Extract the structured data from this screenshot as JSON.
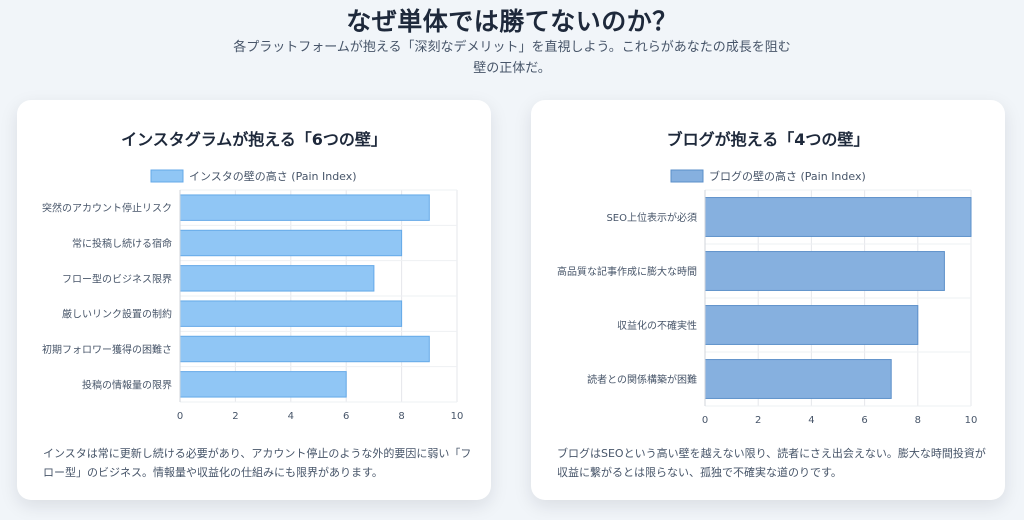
{
  "header": {
    "title": "なぜ単体では勝てないのか？",
    "subtitle": "各プラットフォームが抱える「深刻なデメリット」を直視しよう。これらがあなたの成長を阻む壁の正体だ。"
  },
  "cards": [
    {
      "title": "インスタグラムが抱える「6つの壁」",
      "description": "インスタは常に更新し続ける必要があり、アカウント停止のような外的要因に弱い「フロー型」のビジネス。情報量や収益化の仕組みにも限界があります。"
    },
    {
      "title": "ブログが抱える「4つの壁」",
      "description": "ブログはSEOという高い壁を越えない限り、読者にさえ出会えない。膨大な時間投資が収益に繋がるとは限らない、孤独で不確実な道のりです。"
    }
  ],
  "chart_data": [
    {
      "type": "bar",
      "orientation": "horizontal",
      "categories": [
        "突然のアカウント停止リスク",
        "常に投稿し続ける宿命",
        "フロー型のビジネス限界",
        "厳しいリンク設置の制約",
        "初期フォロワー獲得の困難さ",
        "投稿の情報量の限界"
      ],
      "series": [
        {
          "name": "インスタの壁の高さ (Pain Index)",
          "values": [
            9,
            8,
            7,
            8,
            9,
            6
          ]
        }
      ],
      "xlim": [
        0,
        10
      ],
      "xticks": [
        "0",
        "2",
        "4",
        "6",
        "8",
        "10"
      ],
      "grid": true,
      "legend": "top",
      "colors": {
        "fill": "#90c6f5",
        "stroke": "#64a9e8"
      }
    },
    {
      "type": "bar",
      "orientation": "horizontal",
      "categories": [
        "SEO上位表示が必須",
        "高品質な記事作成に膨大な時間",
        "収益化の不確実性",
        "読者との関係構築が困難"
      ],
      "series": [
        {
          "name": "ブログの壁の高さ (Pain Index)",
          "values": [
            10,
            9,
            8,
            7
          ]
        }
      ],
      "xlim": [
        0,
        10
      ],
      "xticks": [
        "0",
        "2",
        "4",
        "6",
        "8",
        "10"
      ],
      "grid": true,
      "legend": "top",
      "colors": {
        "fill": "#86b0df",
        "stroke": "#5b8fc9"
      }
    }
  ]
}
